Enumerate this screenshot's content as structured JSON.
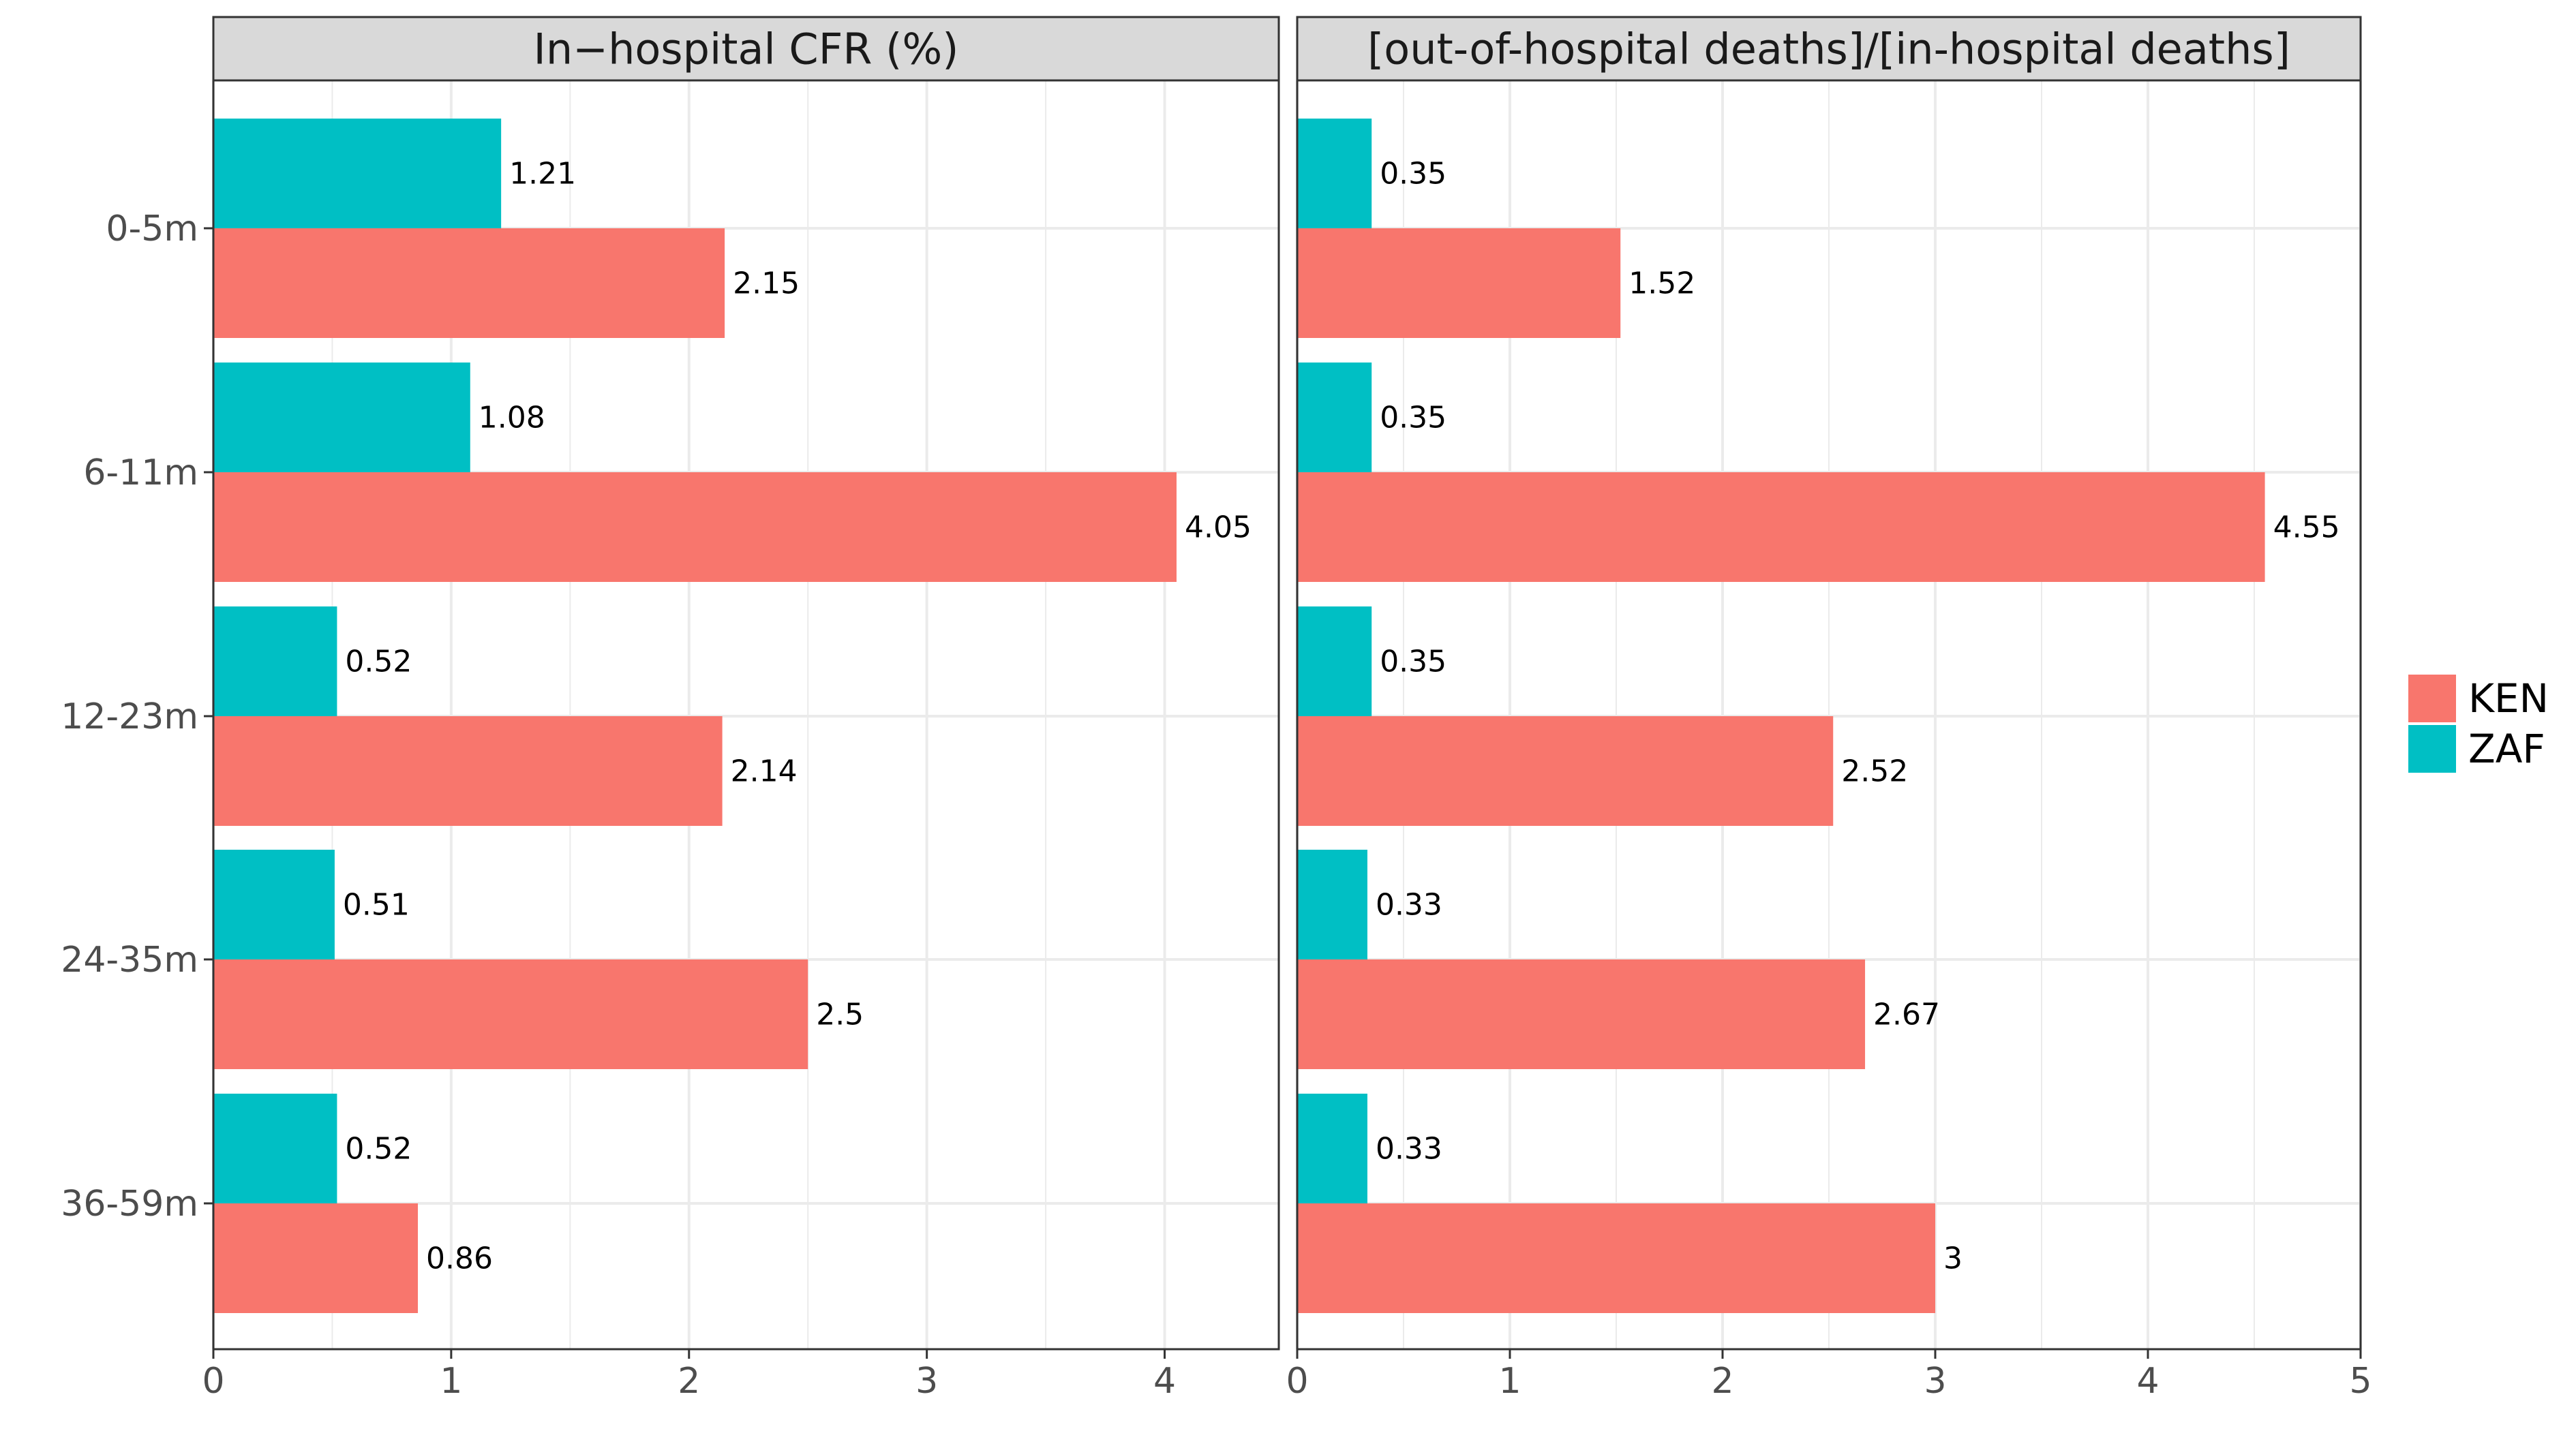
{
  "colors": {
    "KEN": "#F8766D",
    "ZAF": "#00BFC4",
    "strip_fill": "#D9D9D9",
    "grid": "#EBEBEB",
    "frame": "#333333"
  },
  "legend": {
    "position": "right",
    "items": [
      {
        "key": "KEN",
        "label": "KEN"
      },
      {
        "key": "ZAF",
        "label": "ZAF"
      }
    ]
  },
  "chart_data": [
    {
      "type": "bar",
      "orientation": "horizontal",
      "title": "In−hospital CFR (%)",
      "categories": [
        "0-5m",
        "6-11m",
        "12-23m",
        "24-35m",
        "36-59m"
      ],
      "xlim": [
        0,
        4.48
      ],
      "xticks": [
        0,
        1,
        2,
        3,
        4
      ],
      "grid": true,
      "series": [
        {
          "name": "ZAF",
          "values": [
            1.21,
            1.08,
            0.52,
            0.51,
            0.52
          ],
          "labels": [
            "1.21",
            "1.08",
            "0.52",
            "0.51",
            "0.52"
          ]
        },
        {
          "name": "KEN",
          "values": [
            2.15,
            4.05,
            2.14,
            2.5,
            0.86
          ],
          "labels": [
            "2.15",
            "4.05",
            "2.14",
            "2.5",
            "0.86"
          ]
        }
      ]
    },
    {
      "type": "bar",
      "orientation": "horizontal",
      "title": "[out-of-hospital deaths]/[in-hospital deaths]",
      "categories": [
        "0-5m",
        "6-11m",
        "12-23m",
        "24-35m",
        "36-59m"
      ],
      "xlim": [
        0,
        5.0
      ],
      "xticks": [
        0,
        1,
        2,
        3,
        4,
        5
      ],
      "grid": true,
      "series": [
        {
          "name": "ZAF",
          "values": [
            0.35,
            0.35,
            0.35,
            0.33,
            0.33
          ],
          "labels": [
            "0.35",
            "0.35",
            "0.35",
            "0.33",
            "0.33"
          ]
        },
        {
          "name": "KEN",
          "values": [
            1.52,
            4.55,
            2.52,
            2.67,
            3
          ],
          "labels": [
            "1.52",
            "4.55",
            "2.52",
            "2.67",
            "3"
          ]
        }
      ]
    }
  ]
}
